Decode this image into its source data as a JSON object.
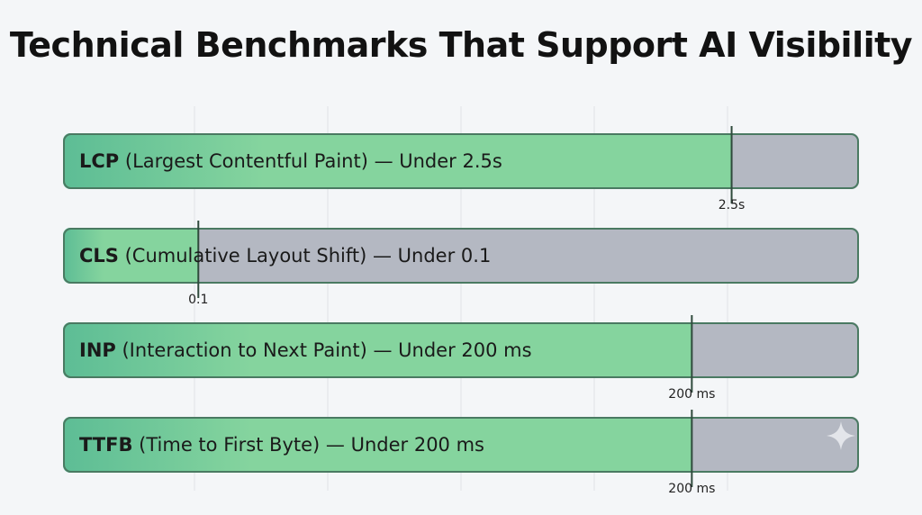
{
  "title": "Technical Benchmarks That Support AI Visibility",
  "chart_data": {
    "type": "bar",
    "title": "Technical Benchmarks That Support AI Visibility",
    "orientation": "horizontal",
    "xlabel": "",
    "ylabel": "",
    "grid": true,
    "legend": "none",
    "colors": {
      "track": "#b4b8c2",
      "fill_dark": "#5dbd95",
      "fill_light": "#85d49e",
      "border": "#4a7a62",
      "grid": "#dfe2e6"
    },
    "rows": [
      {
        "abbr": "LCP",
        "name": "(Largest Contentful Paint) — Under 2.5s",
        "threshold_label": "2.5s",
        "fraction": 0.84
      },
      {
        "abbr": "CLS",
        "name": "(Cumulative Layout Shift) — Under 0.1",
        "threshold_label": "0.1",
        "fraction": 0.17
      },
      {
        "abbr": "INP",
        "name": "(Interaction to Next Paint) — Under 200 ms",
        "threshold_label": "200 ms",
        "fraction": 0.79
      },
      {
        "abbr": "TTFB",
        "name": "(Time to First Byte) — Under 200 ms",
        "threshold_label": "200 ms",
        "fraction": 0.79
      }
    ]
  }
}
